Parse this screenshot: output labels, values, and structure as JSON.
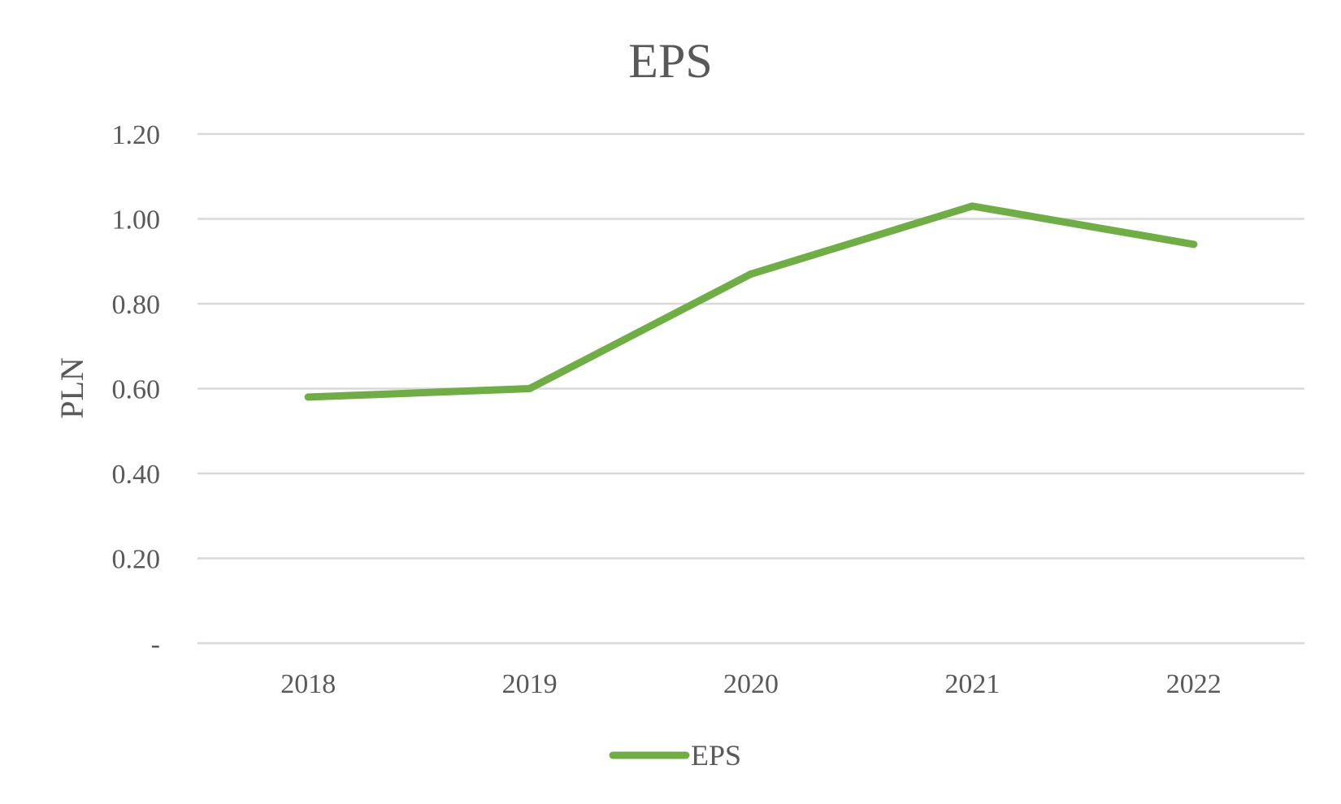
{
  "chart_data": {
    "type": "line",
    "title": "EPS",
    "xlabel": "",
    "ylabel": "PLN",
    "categories": [
      "2018",
      "2019",
      "2020",
      "2021",
      "2022"
    ],
    "series": [
      {
        "name": "EPS",
        "values": [
          0.58,
          0.6,
          0.87,
          1.03,
          0.94
        ],
        "color": "#70ad47"
      }
    ],
    "ylim": [
      0,
      1.2
    ],
    "yticks": [
      0,
      0.2,
      0.4,
      0.6,
      0.8,
      1.0,
      1.2
    ],
    "ytick_labels": [
      "-",
      "0.20",
      "0.40",
      "0.60",
      "0.80",
      "1.00",
      "1.20"
    ],
    "grid": true,
    "legend": "bottom"
  }
}
